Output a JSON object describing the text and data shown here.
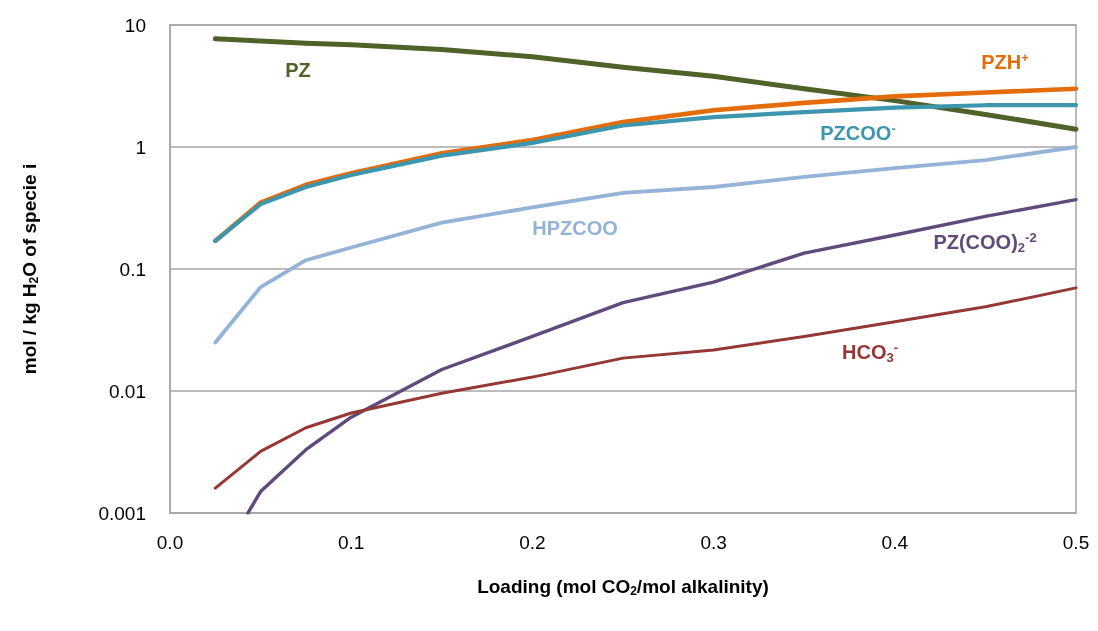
{
  "chart_data": {
    "type": "line",
    "xlabel": "Loading (mol CO$_{2}$/mol alkalinity)",
    "ylabel": "mol / kg H$_{2}$O of specie i",
    "x": [
      0.025,
      0.05,
      0.075,
      0.1,
      0.15,
      0.2,
      0.25,
      0.3,
      0.35,
      0.4,
      0.45,
      0.5
    ],
    "series": [
      {
        "name": "PZ",
        "color": "#4f6228",
        "values": [
          7.7,
          7.4,
          7.1,
          6.9,
          6.3,
          5.5,
          4.5,
          3.8,
          3.0,
          2.4,
          1.85,
          1.4
        ]
      },
      {
        "name": "PZH$^{+}$",
        "color": "#e46c0a",
        "values": [
          0.17,
          0.35,
          0.49,
          0.61,
          0.89,
          1.14,
          1.6,
          2.0,
          2.3,
          2.6,
          2.8,
          3.0
        ]
      },
      {
        "name": "PZCOO$^{-}$",
        "color": "#3d96ae",
        "values": [
          0.17,
          0.34,
          0.47,
          0.59,
          0.85,
          1.08,
          1.5,
          1.76,
          1.93,
          2.1,
          2.2,
          2.2
        ]
      },
      {
        "name": "HPZCOO",
        "color": "#95b3d7",
        "values": [
          0.025,
          0.071,
          0.118,
          0.15,
          0.24,
          0.32,
          0.42,
          0.47,
          0.57,
          0.67,
          0.78,
          1.0
        ]
      },
      {
        "name": "PZ(COO)$_{2}$$^{-2}$",
        "color": "#604a7b",
        "x": [
          0.043,
          0.05,
          0.075,
          0.1,
          0.15,
          0.2,
          0.25,
          0.3,
          0.35,
          0.4,
          0.45,
          0.5
        ],
        "values": [
          0.001,
          0.0015,
          0.0033,
          0.0061,
          0.015,
          0.028,
          0.053,
          0.078,
          0.135,
          0.19,
          0.27,
          0.37
        ]
      },
      {
        "name": "HCO$_{3}$$^{-}$",
        "color": "#953735",
        "values": [
          0.0016,
          0.0032,
          0.005,
          0.0066,
          0.0096,
          0.013,
          0.0186,
          0.0217,
          0.028,
          0.037,
          0.049,
          0.07
        ]
      }
    ],
    "xlim": [
      0,
      0.5
    ],
    "xticks": [
      {
        "value": 0,
        "label": "0.0"
      },
      0.1,
      0.2,
      0.3,
      0.4,
      0.5
    ],
    "ylim": [
      0.001,
      10
    ],
    "yticks": [
      0.001,
      0.01,
      0.1,
      1,
      10
    ],
    "log": "y",
    "grid": "y",
    "marker": "none",
    "line_style": "solid"
  }
}
